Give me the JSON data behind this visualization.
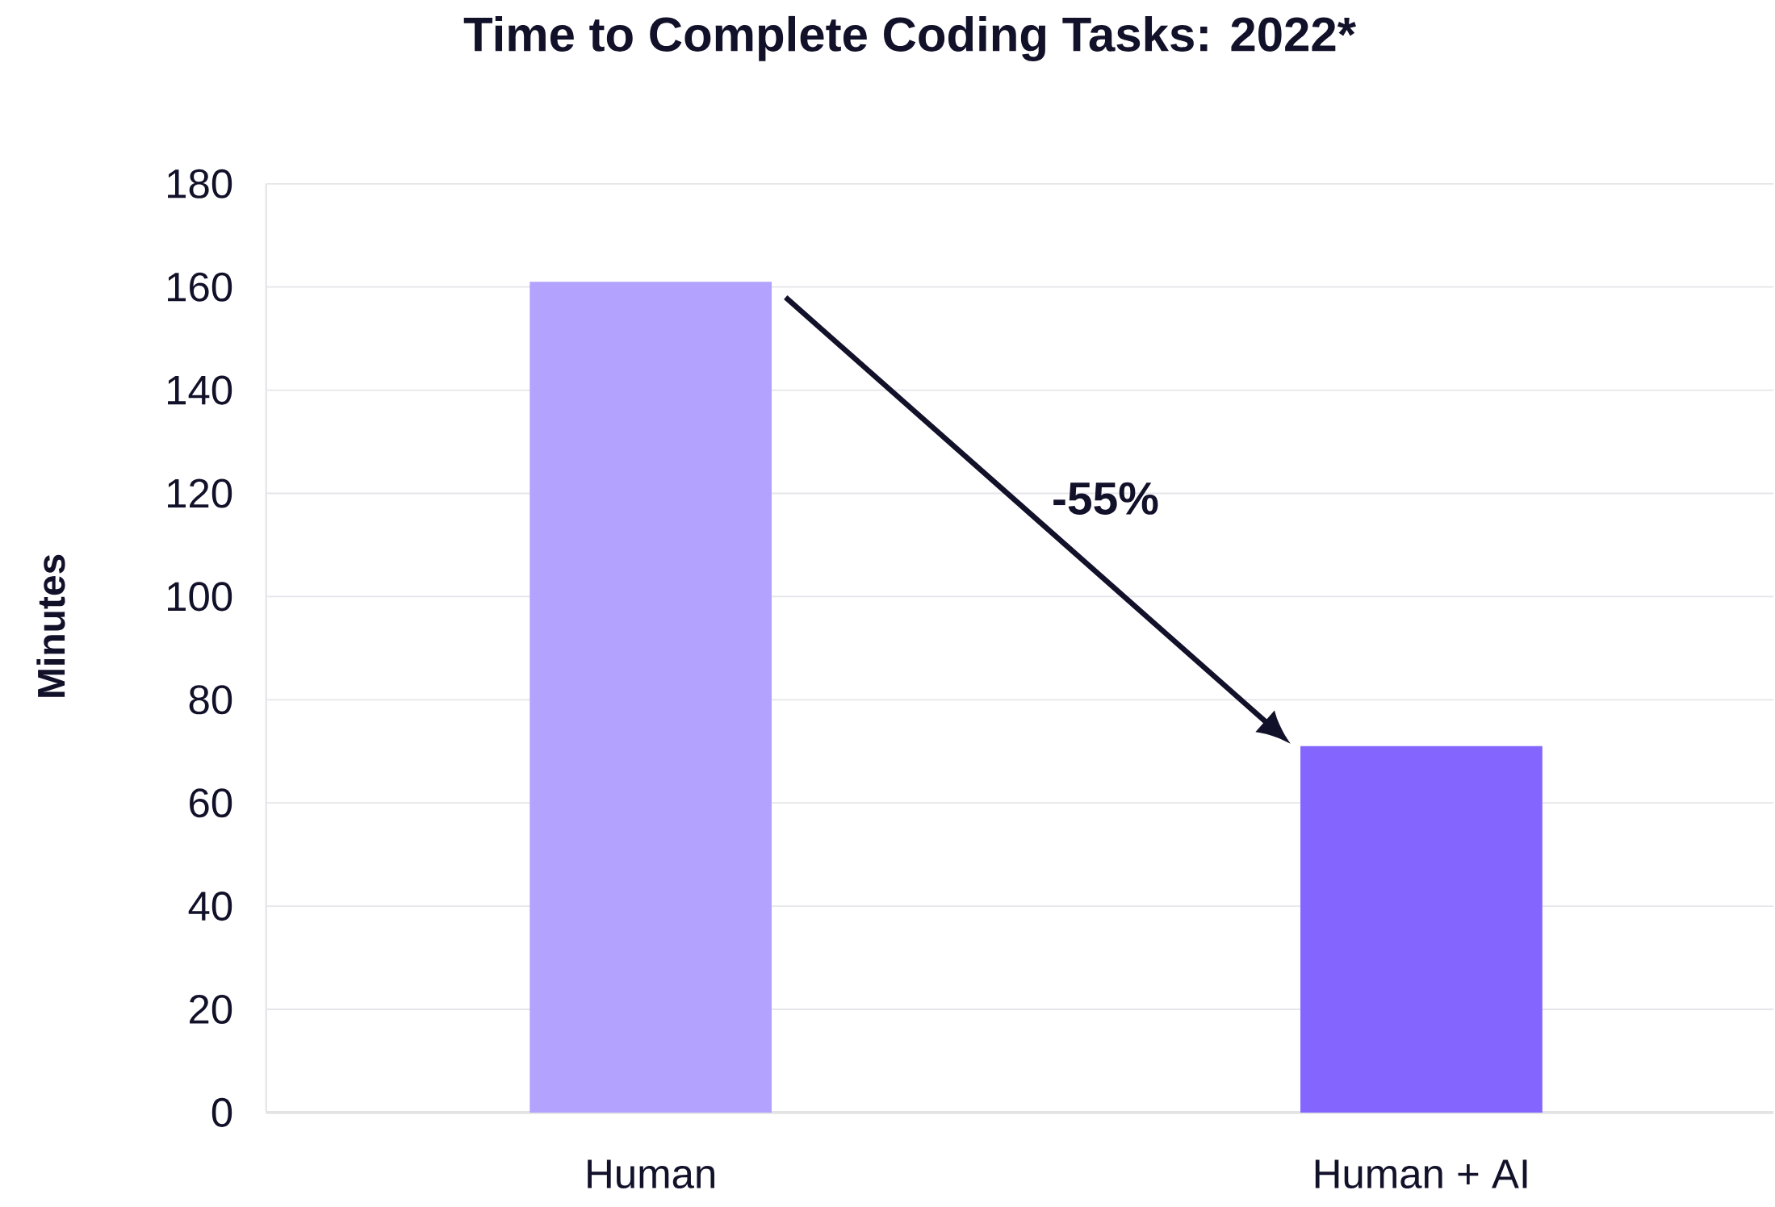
{
  "chart_data": {
    "type": "bar",
    "title": "Time to Complete Coding Tasks: 2022*",
    "ylabel": "Minutes",
    "categories": [
      "Human",
      "Human + AI"
    ],
    "values": [
      161,
      71
    ],
    "colors": [
      "#b3a3fe",
      "#8466fe"
    ],
    "ylim": [
      0,
      180
    ],
    "yticks": [
      0,
      20,
      40,
      60,
      80,
      100,
      120,
      140,
      160,
      180
    ],
    "annotations": [
      "-55%"
    ],
    "grid": "y"
  }
}
